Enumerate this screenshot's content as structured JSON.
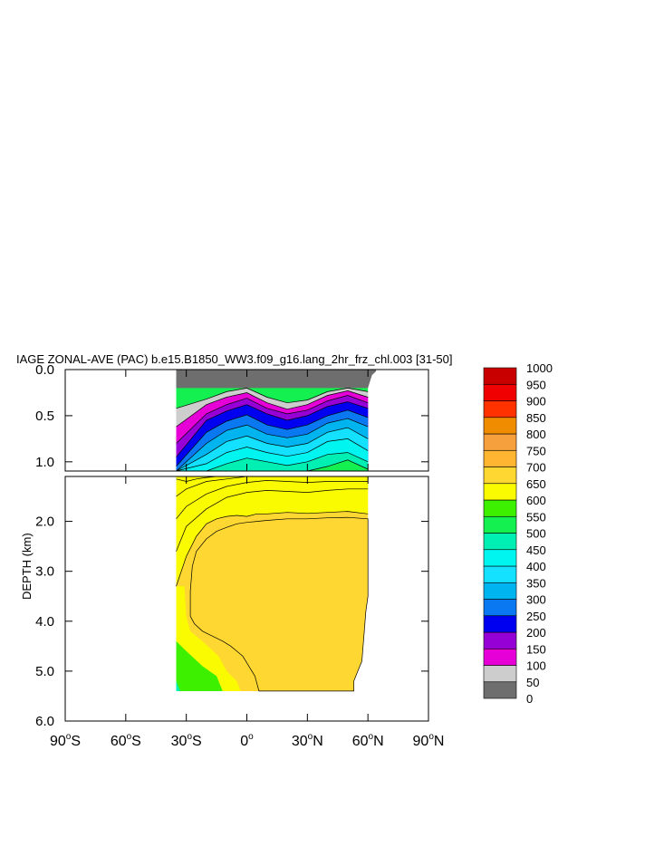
{
  "chart_data": {
    "type": "heatmap",
    "title": "IAGE ZONAL-AVE (PAC) b.e15.B1850_WW3.f09_g16.lang_2hr_frz_chl.003 [31-50]",
    "ylabel": "DEPTH (km)",
    "xlabel": "",
    "x_ticks": [
      {
        "value": -90,
        "label": "90°S",
        "num": "90",
        "hemi": "S"
      },
      {
        "value": -60,
        "label": "60°S",
        "num": "60",
        "hemi": "S"
      },
      {
        "value": -30,
        "label": "30°S",
        "num": "30",
        "hemi": "S"
      },
      {
        "value": 0,
        "label": "0°",
        "num": "0",
        "hemi": ""
      },
      {
        "value": 30,
        "label": "30°N",
        "num": "30",
        "hemi": "N"
      },
      {
        "value": 60,
        "label": "60°N",
        "num": "60",
        "hemi": "N"
      },
      {
        "value": 90,
        "label": "90°N",
        "num": "90",
        "hemi": "N"
      }
    ],
    "xlim": [
      -90,
      90
    ],
    "upper_panel": {
      "ylim": [
        0.0,
        1.1
      ],
      "y_ticks": [
        {
          "value": 0.0,
          "label": "0.0"
        },
        {
          "value": 0.5,
          "label": "0.5"
        },
        {
          "value": 1.0,
          "label": "1.0"
        }
      ]
    },
    "lower_panel": {
      "ylim": [
        1.1,
        6.0
      ],
      "y_ticks": [
        {
          "value": 2.0,
          "label": "2.0"
        },
        {
          "value": 3.0,
          "label": "3.0"
        },
        {
          "value": 4.0,
          "label": "4.0"
        },
        {
          "value": 5.0,
          "label": "5.0"
        },
        {
          "value": 6.0,
          "label": "6.0"
        }
      ]
    },
    "colorbar": {
      "levels": [
        0,
        50,
        100,
        150,
        200,
        250,
        300,
        350,
        400,
        450,
        500,
        550,
        600,
        650,
        700,
        750,
        800,
        850,
        900,
        950,
        1000
      ],
      "colors": [
        "#6e6e6e",
        "#cdcdcd",
        "#e600d7",
        "#9600d7",
        "#0000f0",
        "#0a78f0",
        "#00b4f0",
        "#14e1ff",
        "#00f5f0",
        "#00f0b4",
        "#14f050",
        "#3cf000",
        "#fafa00",
        "#ffd732",
        "#ffb432",
        "#f5a03c",
        "#f08c00",
        "#ff3200",
        "#f00000",
        "#c80000"
      ]
    },
    "data_extent": {
      "lat_min": -35,
      "lat_max_surface": 65,
      "lat_max_deep": 53,
      "max_depth_km": 5.4
    },
    "isolines_upper": [
      {
        "value": 50,
        "lat": [
          -35,
          -20,
          -10,
          0,
          10,
          20,
          30,
          40,
          50,
          60
        ],
        "depth": [
          0.42,
          0.32,
          0.24,
          0.2,
          0.3,
          0.36,
          0.33,
          0.24,
          0.2,
          0.24
        ]
      },
      {
        "value": 100,
        "lat": [
          -35,
          -20,
          -10,
          0,
          10,
          20,
          30,
          40,
          50,
          60
        ],
        "depth": [
          0.62,
          0.38,
          0.3,
          0.25,
          0.36,
          0.43,
          0.38,
          0.28,
          0.23,
          0.3
        ]
      },
      {
        "value": 150,
        "lat": [
          -35,
          -20,
          -10,
          0,
          10,
          20,
          30,
          40,
          50,
          60
        ],
        "depth": [
          0.8,
          0.48,
          0.38,
          0.31,
          0.42,
          0.48,
          0.44,
          0.34,
          0.28,
          0.36
        ]
      },
      {
        "value": 200,
        "lat": [
          -35,
          -20,
          -10,
          0,
          10,
          20,
          30,
          40,
          50,
          60
        ],
        "depth": [
          0.95,
          0.55,
          0.45,
          0.38,
          0.48,
          0.55,
          0.5,
          0.4,
          0.35,
          0.42
        ]
      },
      {
        "value": 250,
        "lat": [
          -35,
          -20,
          -10,
          0,
          10,
          20,
          30,
          40,
          50,
          60
        ],
        "depth": [
          1.05,
          0.68,
          0.56,
          0.49,
          0.6,
          0.65,
          0.6,
          0.5,
          0.44,
          0.52
        ]
      },
      {
        "value": 300,
        "lat": [
          -35,
          -20,
          -10,
          0,
          10,
          20,
          30,
          40,
          50,
          60
        ],
        "depth": [
          1.1,
          0.8,
          0.66,
          0.6,
          0.7,
          0.74,
          0.7,
          0.58,
          0.53,
          0.62
        ]
      },
      {
        "value": 350,
        "lat": [
          -35,
          -20,
          -10,
          0,
          10,
          20,
          30,
          40,
          50,
          60
        ],
        "depth": [
          1.1,
          0.92,
          0.78,
          0.72,
          0.8,
          0.84,
          0.8,
          0.68,
          0.63,
          0.75
        ]
      },
      {
        "value": 400,
        "lat": [
          -35,
          -20,
          -10,
          0,
          10,
          20,
          30,
          40,
          50,
          60
        ],
        "depth": [
          1.1,
          1.02,
          0.9,
          0.84,
          0.9,
          0.94,
          0.9,
          0.78,
          0.75,
          0.88
        ]
      },
      {
        "value": 450,
        "lat": [
          -35,
          -20,
          -10,
          0,
          10,
          20,
          30,
          40,
          50,
          60
        ],
        "depth": [
          1.1,
          1.1,
          1.02,
          0.96,
          1.0,
          1.04,
          1.0,
          0.92,
          0.9,
          1.0
        ]
      },
      {
        "value": 500,
        "lat": [
          -35,
          -20,
          -10,
          0,
          10,
          20,
          30,
          40,
          50,
          60
        ],
        "depth": [
          1.1,
          1.1,
          1.1,
          1.1,
          1.1,
          1.1,
          1.1,
          1.05,
          0.98,
          1.08
        ]
      }
    ],
    "isolines_lower": [
      {
        "value": 450,
        "lat": [
          -35,
          -30,
          -25,
          -20,
          -15,
          -10
        ],
        "depth": [
          1.15,
          1.2,
          1.15,
          1.12,
          1.1,
          1.1
        ]
      },
      {
        "value": 500,
        "lat": [
          -35,
          -30,
          -20,
          -10,
          0,
          10,
          20,
          30,
          40,
          50,
          60
        ],
        "depth": [
          1.5,
          1.35,
          1.2,
          1.15,
          1.1,
          1.1,
          1.1,
          1.1,
          1.1,
          1.1,
          1.1
        ]
      },
      {
        "value": 550,
        "lat": [
          -35,
          -30,
          -20,
          -10,
          0,
          10,
          20,
          30,
          40,
          50,
          60
        ],
        "depth": [
          1.95,
          1.7,
          1.45,
          1.3,
          1.22,
          1.18,
          1.2,
          1.22,
          1.2,
          1.2,
          1.2
        ]
      },
      {
        "value": 600,
        "lat": [
          -35,
          -30,
          -20,
          -10,
          0,
          10,
          20,
          30,
          40,
          50,
          60
        ],
        "depth": [
          2.6,
          2.1,
          1.75,
          1.52,
          1.42,
          1.38,
          1.4,
          1.42,
          1.38,
          1.35,
          1.35
        ]
      },
      {
        "value": 650,
        "lat": [
          -35,
          -30,
          -25,
          -20,
          -15,
          -10,
          -5,
          0,
          5,
          10,
          20,
          30,
          40,
          50,
          60
        ],
        "depth": [
          3.3,
          2.7,
          2.3,
          2.05,
          1.95,
          1.9,
          1.88,
          1.9,
          1.85,
          1.85,
          1.82,
          1.84,
          1.82,
          1.8,
          1.85
        ]
      }
    ],
    "regions_lower": [
      {
        "value": 675,
        "lat": [
          -28,
          -27,
          -25,
          -20,
          -15,
          -10,
          -5,
          0,
          5,
          10,
          20,
          30,
          40,
          50,
          60,
          60,
          59,
          58,
          57,
          55,
          53,
          53,
          50,
          40,
          30,
          20,
          10,
          6,
          4,
          1,
          -2,
          -5,
          -8,
          -12,
          -17,
          -22,
          -26,
          -28
        ],
        "depth": [
          3.4,
          2.9,
          2.6,
          2.35,
          2.2,
          2.12,
          2.05,
          2.02,
          2.0,
          1.98,
          1.95,
          1.95,
          1.93,
          1.92,
          1.95,
          3.5,
          3.8,
          4.3,
          4.8,
          5.0,
          5.2,
          5.4,
          5.4,
          5.4,
          5.4,
          5.4,
          5.4,
          5.4,
          5.1,
          4.9,
          4.7,
          4.6,
          4.5,
          4.4,
          4.3,
          4.2,
          4.05,
          3.9
        ]
      }
    ]
  }
}
